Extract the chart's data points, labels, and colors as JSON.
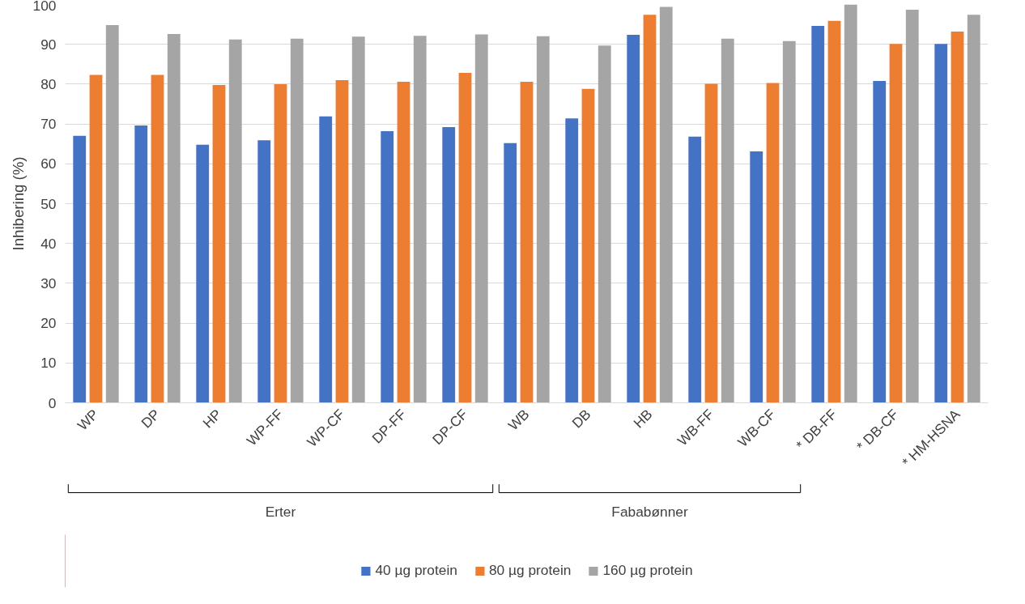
{
  "chart_data": {
    "type": "bar",
    "ylabel": "Inhibering (%)",
    "categories": [
      "WP",
      "DP",
      "HP",
      "WP-FF",
      "WP-CF",
      "DP-FF",
      "DP-CF",
      "WB",
      "DB",
      "HB",
      "WB-FF",
      "WB-CF",
      "* DB-FF",
      "* DB-CF",
      "* HM-HSNA"
    ],
    "series": [
      {
        "name": "40 µg protein",
        "color": "#4472c4",
        "values": [
          67.0,
          69.6,
          64.8,
          65.9,
          71.9,
          68.2,
          69.2,
          65.2,
          71.4,
          92.4,
          66.8,
          63.1,
          94.6,
          80.8,
          90.1
        ]
      },
      {
        "name": "80 µg protein",
        "color": "#ed7d31",
        "values": [
          82.3,
          82.3,
          79.8,
          80.0,
          81.0,
          80.6,
          82.8,
          80.6,
          78.8,
          97.4,
          80.1,
          80.3,
          95.9,
          90.1,
          93.2
        ]
      },
      {
        "name": "160 µg protein",
        "color": "#a5a5a5",
        "values": [
          94.8,
          92.6,
          91.2,
          91.4,
          91.9,
          92.1,
          92.5,
          92.0,
          89.7,
          99.4,
          91.4,
          90.8,
          100,
          98.7,
          97.4
        ]
      }
    ],
    "annotations": [
      "Erter",
      "Fababønner"
    ],
    "ylim": [
      0,
      100
    ],
    "yticks": [
      0,
      10,
      20,
      30,
      40,
      50,
      60,
      70,
      80,
      90,
      100
    ],
    "grid": "y",
    "legend": "bottom"
  }
}
